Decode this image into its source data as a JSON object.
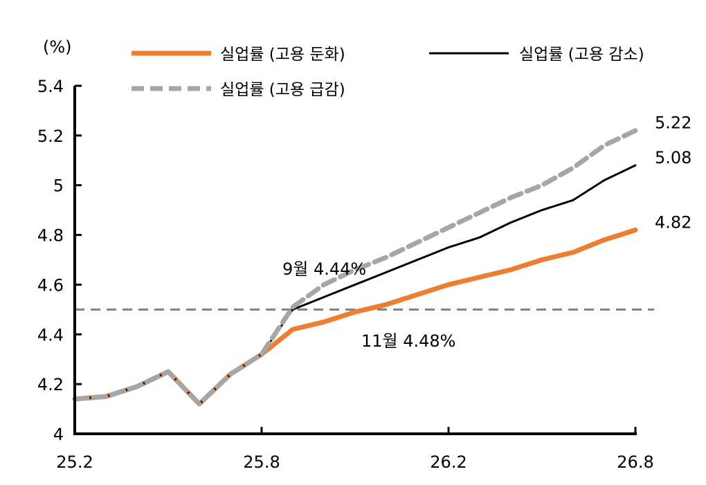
{
  "chart_data": {
    "type": "line",
    "title": "",
    "xlabel": "",
    "ylabel": "(%)",
    "x": [
      "25.2",
      "25.3",
      "25.4",
      "25.5",
      "25.6",
      "25.7",
      "25.8",
      "25.9",
      "25.10",
      "25.11",
      "25.12",
      "26.1",
      "26.2",
      "26.3",
      "26.4",
      "26.5",
      "26.6",
      "26.7",
      "26.8"
    ],
    "x_tick_labels": [
      "25.2",
      "25.8",
      "26.2",
      "26.8"
    ],
    "x_tick_index": [
      0,
      6,
      12,
      18
    ],
    "ylim": [
      4,
      5.4
    ],
    "y_ticks": [
      4,
      4.2,
      4.4,
      4.6,
      4.8,
      5,
      5.2,
      5.4
    ],
    "y_tick_labels": [
      "4",
      "4.2",
      "4.4",
      "4.6",
      "4.8",
      "5",
      "5.2",
      "5.4"
    ],
    "grid": false,
    "legend_position": "top",
    "series": [
      {
        "name": "실업률 (고용 둔화)",
        "color": "#ED7D31",
        "style": "solid-thick",
        "values": [
          4.14,
          4.15,
          4.19,
          4.25,
          4.12,
          4.24,
          4.32,
          4.42,
          4.45,
          4.49,
          4.52,
          4.56,
          4.6,
          4.63,
          4.66,
          4.7,
          4.73,
          4.78,
          4.82
        ],
        "end_label": "4.82"
      },
      {
        "name": "실업률 (고용 감소)",
        "color": "#000000",
        "style": "solid-thin",
        "values": [
          4.14,
          4.15,
          4.19,
          4.25,
          4.12,
          4.24,
          4.32,
          4.5,
          4.55,
          4.6,
          4.65,
          4.7,
          4.75,
          4.79,
          4.85,
          4.9,
          4.94,
          5.02,
          5.08
        ],
        "end_label": "5.08"
      },
      {
        "name": "실업률 (고용 급감)",
        "color": "#A6A6A6",
        "style": "dashed",
        "values": [
          4.14,
          4.15,
          4.19,
          4.25,
          4.12,
          4.24,
          4.32,
          4.51,
          4.6,
          4.66,
          4.71,
          4.77,
          4.83,
          4.89,
          4.95,
          5.0,
          5.07,
          5.16,
          5.22
        ],
        "end_label": "5.22"
      }
    ],
    "reference_line": {
      "value": 4.5,
      "color": "#7F7F7F",
      "style": "dashed"
    },
    "annotations": [
      {
        "text": "9월 4.44%"
      },
      {
        "text": "11월 4.48%"
      }
    ]
  }
}
